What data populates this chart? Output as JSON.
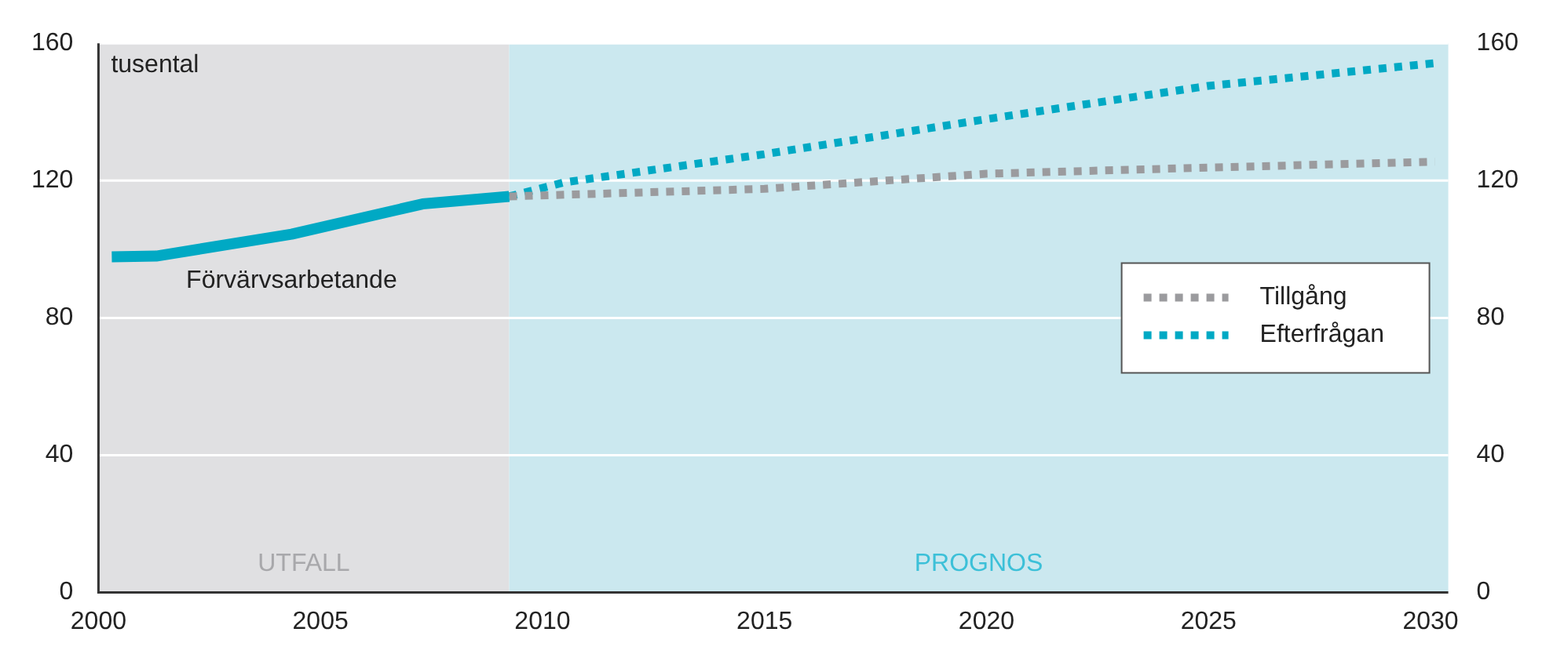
{
  "chart_data": {
    "type": "line",
    "ylabel": "tusental",
    "series": [
      {
        "color": "#00a9c4",
        "line_style": "solid",
        "x": [
          2000.3,
          2001.3,
          2004.35,
          2007.3,
          2009.25
        ],
        "values": [
          97.8,
          98,
          104.4,
          113.2,
          115.4
        ]
      },
      {
        "name": "Tillgång",
        "color": "#9b9b9e",
        "line_style": "dotted",
        "x": [
          2009.25,
          2015,
          2020,
          2025,
          2030.1
        ],
        "values": [
          115.4,
          117.6,
          122,
          123.8,
          125.5
        ]
      },
      {
        "name": "Efterfrågan",
        "color": "#00a9c4",
        "line_style": "dotted",
        "x": [
          2009.25,
          2010.5,
          2015,
          2020,
          2025,
          2030.1
        ],
        "values": [
          115.4,
          119.5,
          127.7,
          137.9,
          147.6,
          154.2
        ]
      }
    ],
    "xlim": [
      2000,
      2030.4
    ],
    "xticks": [
      2000,
      2005,
      2010,
      2015,
      2020,
      2025,
      2030
    ],
    "ylim": [
      0,
      160
    ],
    "yticks": [
      0,
      40,
      80,
      120,
      160
    ],
    "y2lim": [
      0,
      160
    ],
    "y2ticks": [
      0,
      40,
      80,
      120,
      160
    ],
    "bands": [
      {
        "axis": "x",
        "from": 2000,
        "to": 2009.25,
        "label": "UTFALL",
        "color": "#e0e0e2"
      },
      {
        "axis": "x",
        "from": 2009.25,
        "to": 2030.4,
        "label": "PROGNOS",
        "color": "#cbe8ef"
      }
    ],
    "annotations": [
      "Förvärvsarbetande"
    ],
    "grid": "y",
    "legend": "right",
    "marker": "none"
  }
}
